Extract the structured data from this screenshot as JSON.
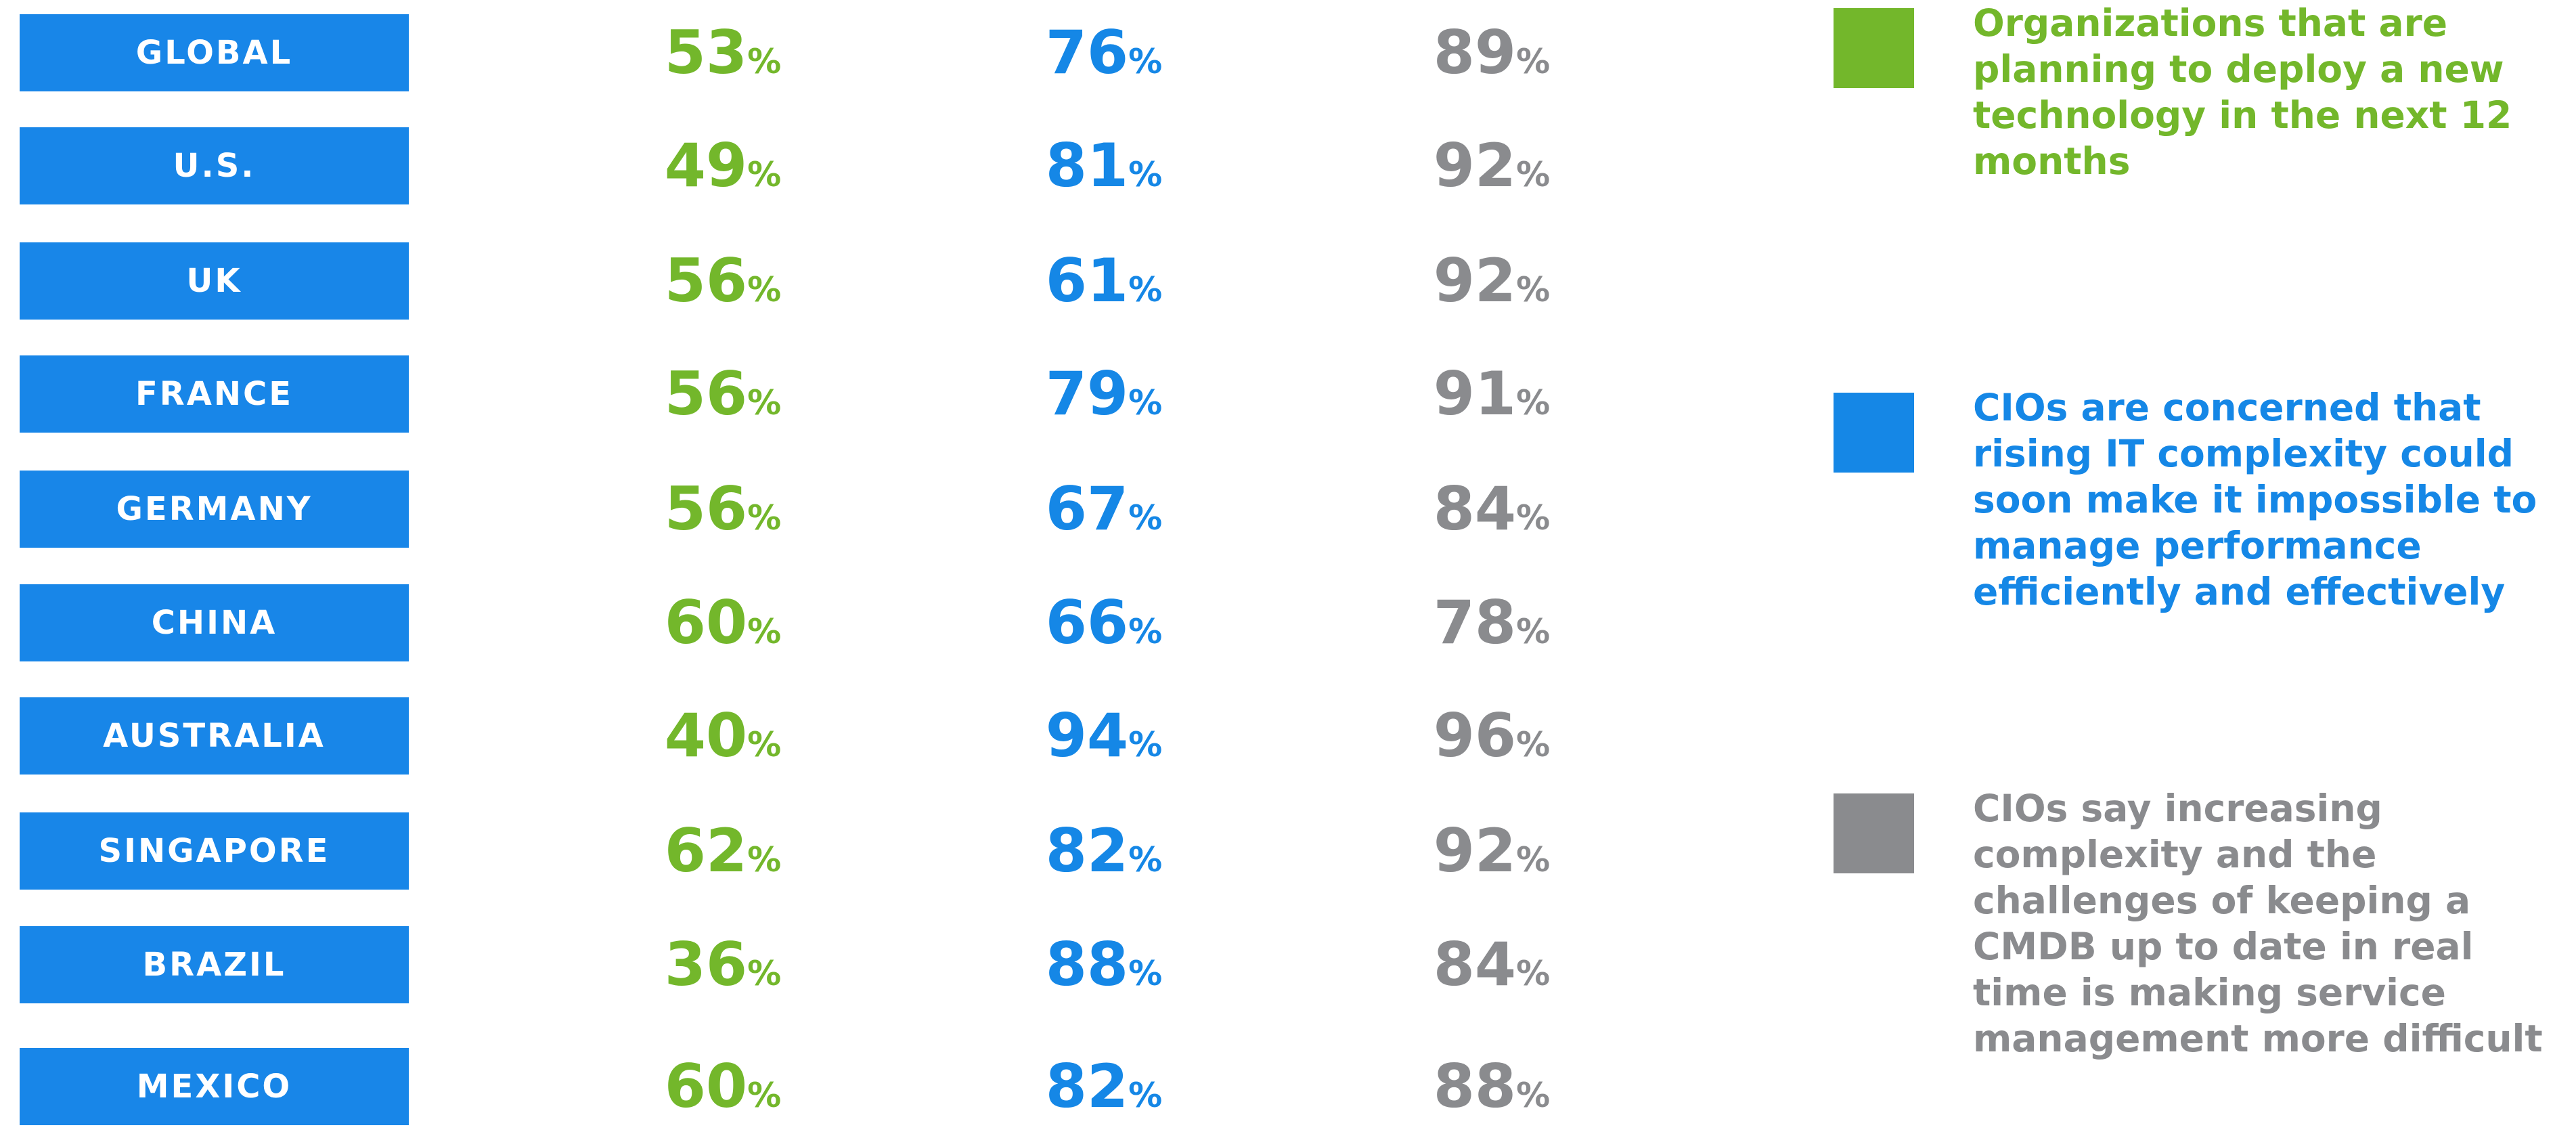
{
  "table": {
    "columns": [
      {
        "color": "#73b72b",
        "legend": "Organizations that are planning to deploy a new technology in the next 12 months"
      },
      {
        "color": "#1587e6",
        "legend": "CIOs are concerned that rising IT complexity could soon make it impossible to manage performance efficiently and effectively"
      },
      {
        "color": "#8a8b8e",
        "legend": "CIOs say increasing complexity and the challenges of keeping a CMDB up to date in real time is making service management more difficult"
      }
    ],
    "rows": [
      [
        "GLOBAL",
        "53%",
        "76%",
        "89%"
      ],
      [
        "U.S.",
        "49%",
        "81%",
        "92%"
      ],
      [
        "UK",
        "56%",
        "61%",
        "92%"
      ],
      [
        "FRANCE",
        "56%",
        "79%",
        "91%"
      ],
      [
        "GERMANY",
        "56%",
        "67%",
        "84%"
      ],
      [
        "CHINA",
        "60%",
        "66%",
        "78%"
      ],
      [
        "AUSTRALIA",
        "40%",
        "94%",
        "96%"
      ],
      [
        "SINGAPORE",
        "62%",
        "82%",
        "92%"
      ],
      [
        "BRAZIL",
        "36%",
        "88%",
        "84%"
      ],
      [
        "MEXICO",
        "60%",
        "82%",
        "88%"
      ]
    ]
  }
}
